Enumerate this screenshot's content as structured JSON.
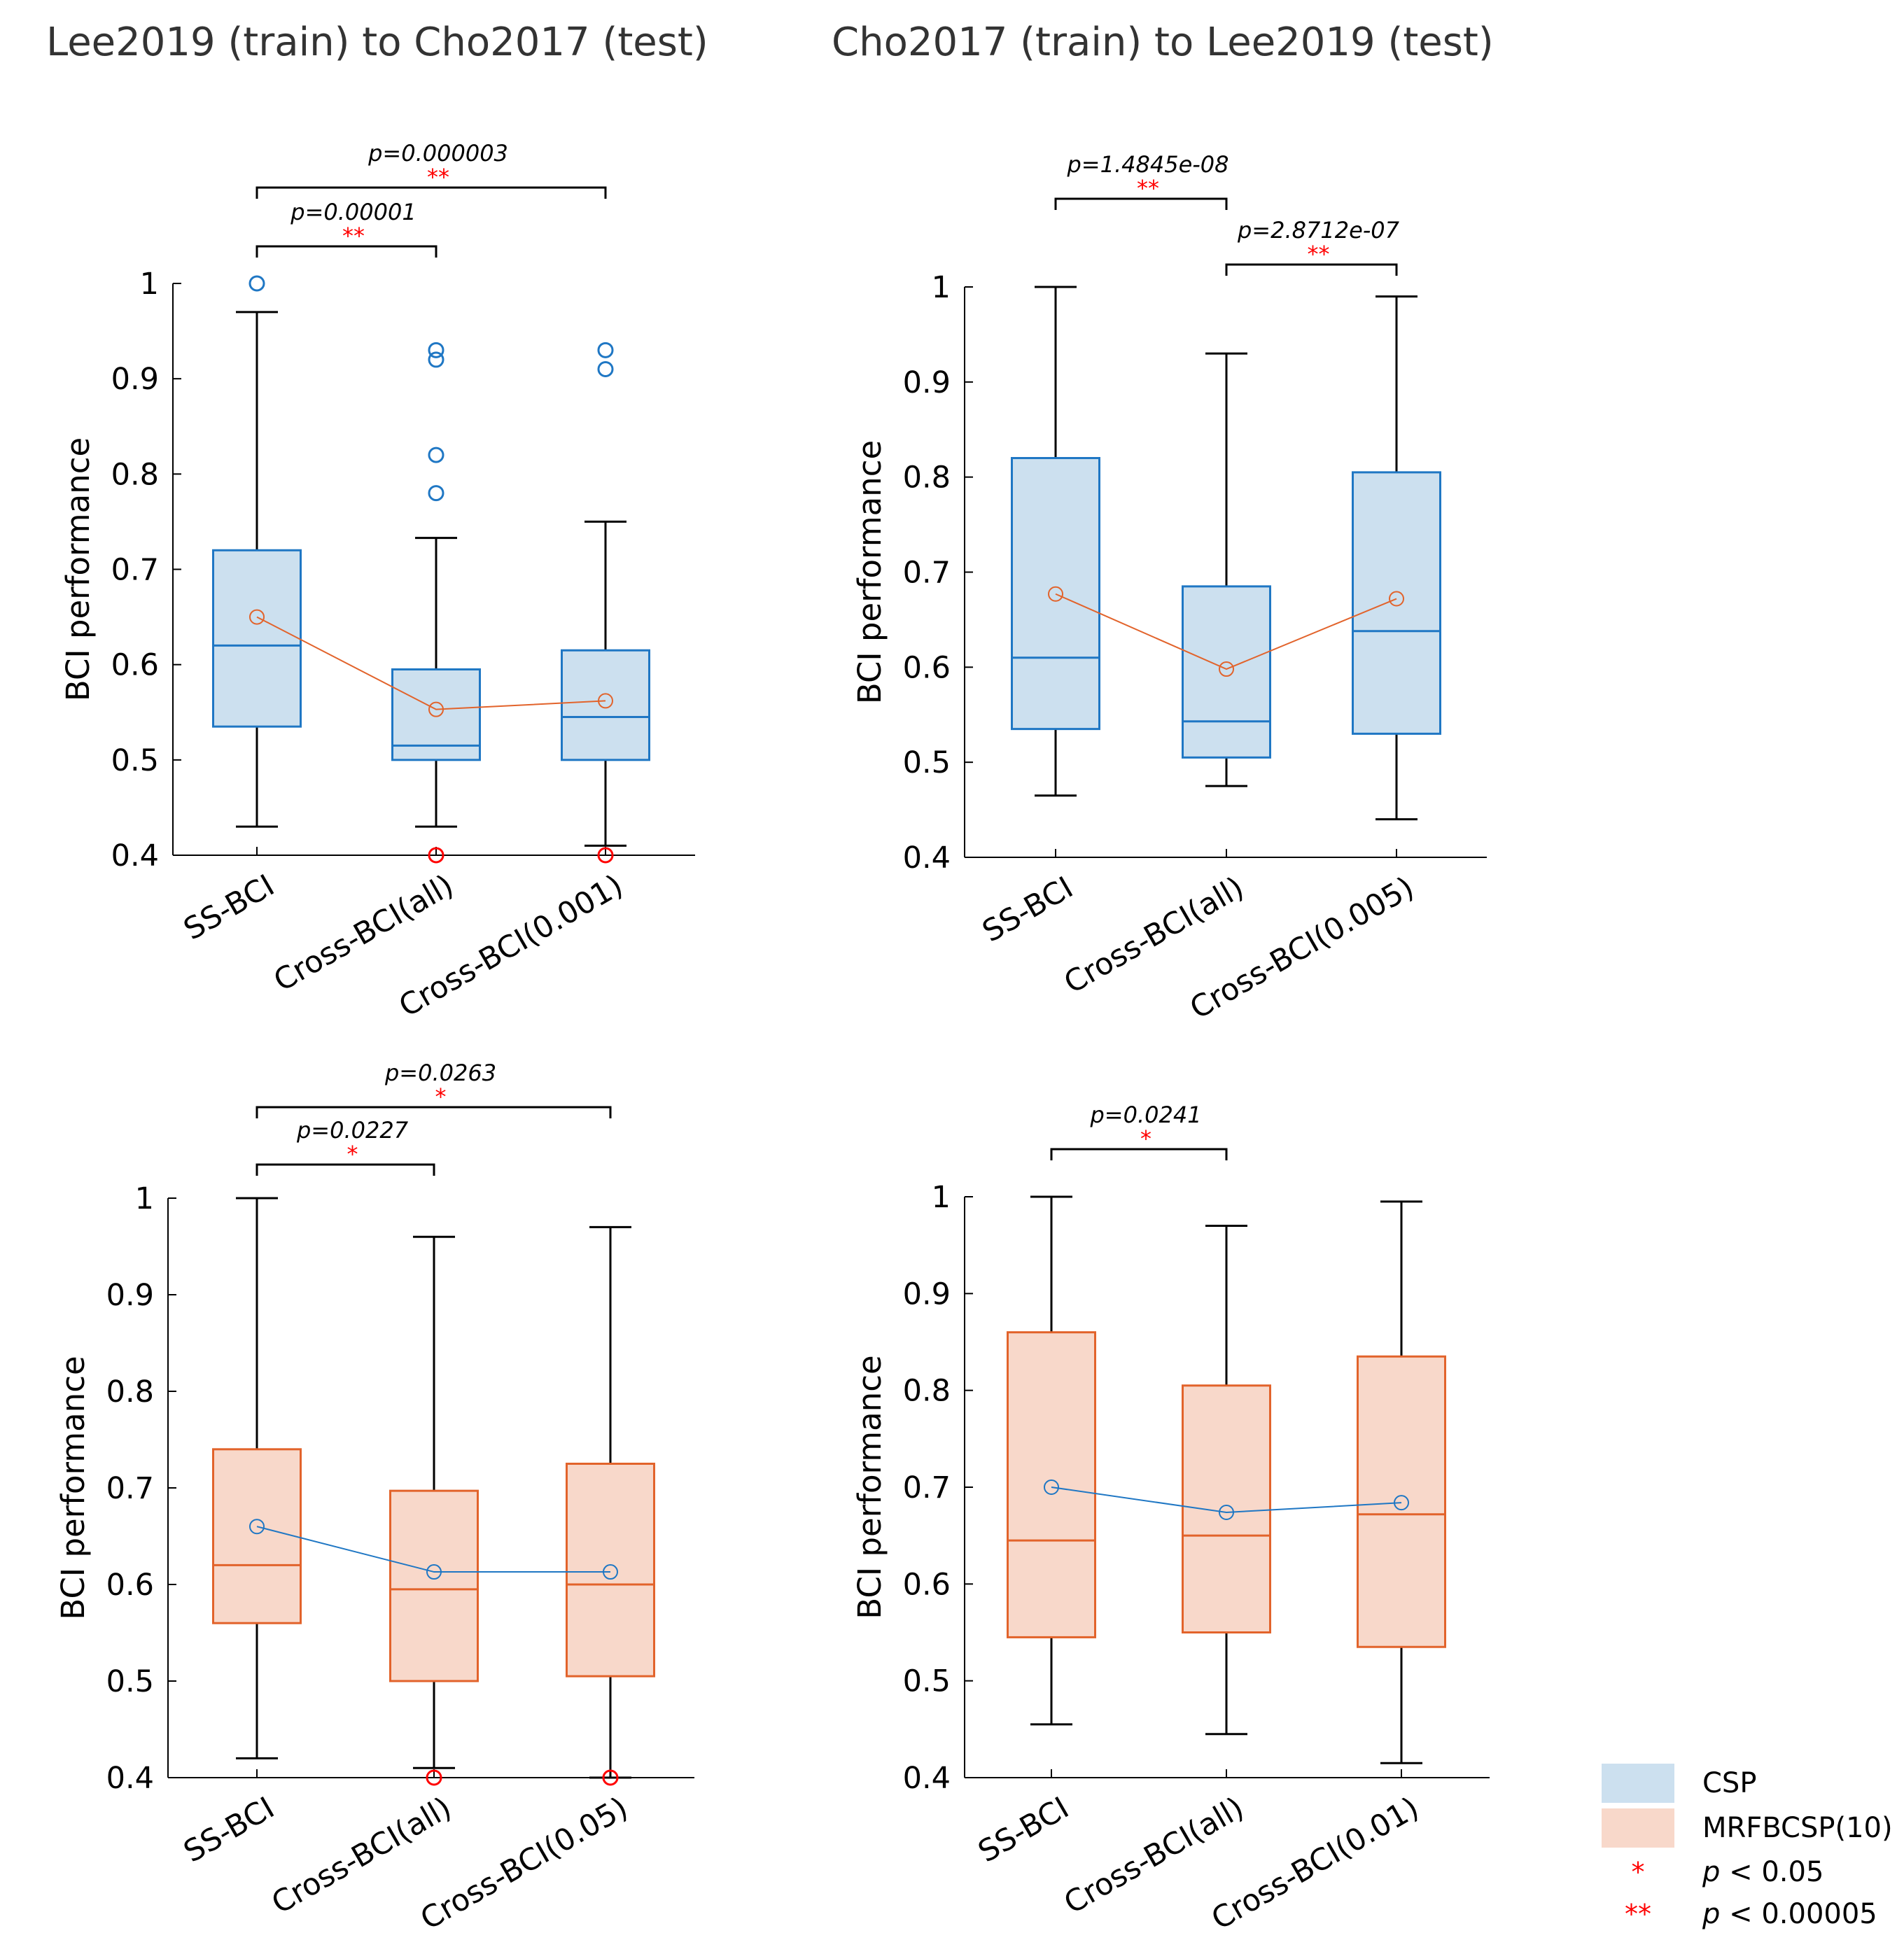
{
  "titles": {
    "left": "Lee2019 (train) to Cho2017 (test)",
    "right": "Cho2017 (train) to Lee2019 (test)"
  },
  "colors": {
    "csp_fill": "#cce0ef",
    "csp_edge": "#1f77c4",
    "mrf_fill": "#f8d8ca",
    "mrf_edge": "#e2632b",
    "whisker": "#000000",
    "outlier_low": "#ff0000",
    "star": "#ff0000"
  },
  "legend": {
    "csp": "CSP",
    "mrf": "MRFBCSP(10)",
    "one_star": "*",
    "two_star": "**",
    "p_symbol": "p",
    "sig1": "< 0.05",
    "sig2": "< 0.00005"
  },
  "chart_data": [
    {
      "id": "top-left",
      "type": "boxplot",
      "method": "CSP",
      "title": "Lee2019 (train) to Cho2017 (test)",
      "ylabel": "BCI performance",
      "ylim": [
        0.4,
        1.0
      ],
      "yticks": [
        "0.4",
        "0.5",
        "0.6",
        "0.7",
        "0.8",
        "0.9",
        "1"
      ],
      "categories": [
        "SS-BCI",
        "Cross-BCI(all)",
        "Cross-BCI(0.001)"
      ],
      "boxes": [
        {
          "q1": 0.535,
          "median": 0.62,
          "q3": 0.72,
          "lo": 0.43,
          "hi": 0.97,
          "mean": 0.65,
          "outliers_high": [
            1.0
          ],
          "outliers_low": []
        },
        {
          "q1": 0.5,
          "median": 0.515,
          "q3": 0.595,
          "lo": 0.43,
          "hi": 0.733,
          "mean": 0.553,
          "outliers_high": [
            0.93,
            0.92,
            0.82,
            0.78
          ],
          "outliers_low": [
            0.4
          ]
        },
        {
          "q1": 0.5,
          "median": 0.545,
          "q3": 0.615,
          "lo": 0.41,
          "hi": 0.75,
          "mean": 0.562,
          "outliers_high": [
            0.93,
            0.91
          ],
          "outliers_low": [
            0.4
          ]
        }
      ],
      "comparisons": [
        {
          "from": 0,
          "to": 1,
          "p": "p=0.00001",
          "stars": "**",
          "level": 1
        },
        {
          "from": 0,
          "to": 2,
          "p": "p=0.000003",
          "stars": "**",
          "level": 2
        }
      ]
    },
    {
      "id": "top-right",
      "type": "boxplot",
      "method": "CSP",
      "title": "Cho2017 (train) to Lee2019 (test)",
      "ylabel": "BCI performance",
      "ylim": [
        0.4,
        1.0
      ],
      "yticks": [
        "0.4",
        "0.5",
        "0.6",
        "0.7",
        "0.8",
        "0.9",
        "1"
      ],
      "categories": [
        "SS-BCI",
        "Cross-BCI(all)",
        "Cross-BCI(0.005)"
      ],
      "boxes": [
        {
          "q1": 0.535,
          "median": 0.61,
          "q3": 0.82,
          "lo": 0.465,
          "hi": 1.0,
          "mean": 0.677,
          "outliers_high": [],
          "outliers_low": []
        },
        {
          "q1": 0.505,
          "median": 0.543,
          "q3": 0.685,
          "lo": 0.475,
          "hi": 0.93,
          "mean": 0.598,
          "outliers_high": [],
          "outliers_low": []
        },
        {
          "q1": 0.53,
          "median": 0.638,
          "q3": 0.805,
          "lo": 0.44,
          "hi": 0.99,
          "mean": 0.672,
          "outliers_high": [],
          "outliers_low": []
        }
      ],
      "comparisons": [
        {
          "from": 0,
          "to": 1,
          "p": "p=1.4845e-08",
          "stars": "**",
          "level": 2
        },
        {
          "from": 1,
          "to": 2,
          "p": "p=2.8712e-07",
          "stars": "**",
          "level": 1
        }
      ]
    },
    {
      "id": "bottom-left",
      "type": "boxplot",
      "method": "MRFBCSP(10)",
      "title": "Lee2019 (train) to Cho2017 (test)",
      "ylabel": "BCI performance",
      "ylim": [
        0.4,
        1.0
      ],
      "yticks": [
        "0.4",
        "0.5",
        "0.6",
        "0.7",
        "0.8",
        "0.9",
        "1"
      ],
      "categories": [
        "SS-BCI",
        "Cross-BCI(all)",
        "Cross-BCI(0.05)"
      ],
      "boxes": [
        {
          "q1": 0.56,
          "median": 0.62,
          "q3": 0.74,
          "lo": 0.42,
          "hi": 1.0,
          "mean": 0.66,
          "outliers_high": [],
          "outliers_low": []
        },
        {
          "q1": 0.5,
          "median": 0.595,
          "q3": 0.697,
          "lo": 0.41,
          "hi": 0.96,
          "mean": 0.613,
          "outliers_high": [],
          "outliers_low": [
            0.4
          ]
        },
        {
          "q1": 0.505,
          "median": 0.6,
          "q3": 0.725,
          "lo": 0.4,
          "hi": 0.97,
          "mean": 0.613,
          "outliers_high": [],
          "outliers_low": [
            0.4
          ]
        }
      ],
      "comparisons": [
        {
          "from": 0,
          "to": 1,
          "p": "p=0.0227",
          "stars": "*",
          "level": 1
        },
        {
          "from": 0,
          "to": 2,
          "p": "p=0.0263",
          "stars": "*",
          "level": 2
        }
      ]
    },
    {
      "id": "bottom-right",
      "type": "boxplot",
      "method": "MRFBCSP(10)",
      "title": "Cho2017 (train) to Lee2019 (test)",
      "ylabel": "BCI performance",
      "ylim": [
        0.4,
        1.0
      ],
      "yticks": [
        "0.4",
        "0.5",
        "0.6",
        "0.7",
        "0.8",
        "0.9",
        "1"
      ],
      "categories": [
        "SS-BCI",
        "Cross-BCI(all)",
        "Cross-BCI(0.01)"
      ],
      "boxes": [
        {
          "q1": 0.545,
          "median": 0.645,
          "q3": 0.86,
          "lo": 0.455,
          "hi": 1.0,
          "mean": 0.7,
          "outliers_high": [],
          "outliers_low": []
        },
        {
          "q1": 0.55,
          "median": 0.65,
          "q3": 0.805,
          "lo": 0.445,
          "hi": 0.97,
          "mean": 0.674,
          "outliers_high": [],
          "outliers_low": []
        },
        {
          "q1": 0.535,
          "median": 0.672,
          "q3": 0.835,
          "lo": 0.415,
          "hi": 0.995,
          "mean": 0.684,
          "outliers_high": [],
          "outliers_low": []
        }
      ],
      "comparisons": [
        {
          "from": 0,
          "to": 1,
          "p": "p=0.0241",
          "stars": "*",
          "level": 1
        }
      ]
    }
  ]
}
